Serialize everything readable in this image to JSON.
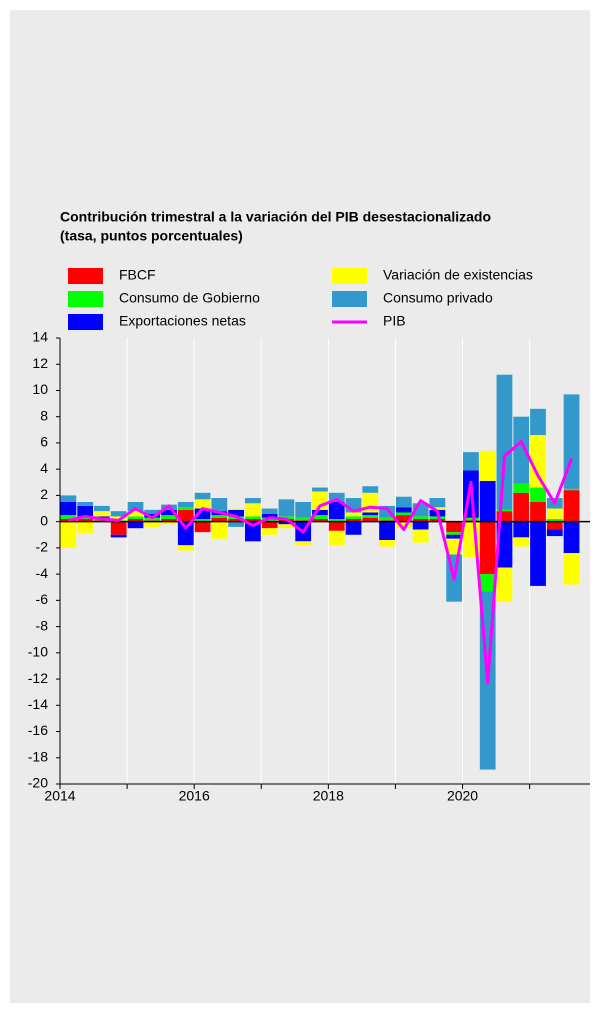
{
  "chart_data": {
    "type": "stacked_bar_line",
    "title": "Contribución trimestral a la variación del PIB desestacionalizado",
    "subtitle": "(tasa, puntos porcentuales)",
    "x": [
      2014.125,
      2014.375,
      2014.625,
      2014.875,
      2015.125,
      2015.375,
      2015.625,
      2015.875,
      2016.125,
      2016.375,
      2016.625,
      2016.875,
      2017.125,
      2017.375,
      2017.625,
      2017.875,
      2018.125,
      2018.375,
      2018.625,
      2018.875,
      2019.125,
      2019.375,
      2019.625,
      2019.875,
      2020.125,
      2020.375,
      2020.625,
      2020.875,
      2021.125,
      2021.375,
      2021.625
    ],
    "series": [
      {
        "name": "FBCF",
        "color": "#ff0000",
        "values": [
          0.2,
          0.2,
          0.1,
          -1.0,
          0.2,
          0.1,
          0.2,
          0.9,
          -0.8,
          0.3,
          0.2,
          0.2,
          -0.5,
          0.2,
          0.1,
          0.2,
          -0.7,
          0.2,
          0.3,
          0.1,
          0.5,
          0.2,
          0.2,
          -0.8,
          0.1,
          -4.0,
          0.8,
          2.2,
          1.5,
          -0.6,
          2.4
        ]
      },
      {
        "name": "Consumo de Gobierno",
        "color": "#00ff00",
        "values": [
          0.3,
          0.2,
          0.2,
          0.1,
          0.2,
          0.2,
          0.3,
          0.2,
          0.2,
          0.2,
          0.2,
          0.2,
          0.3,
          0.2,
          0.2,
          0.3,
          0.2,
          0.2,
          0.2,
          0.2,
          0.2,
          0.2,
          0.2,
          -0.2,
          0.2,
          -1.3,
          0.1,
          0.7,
          1.1,
          0.2,
          0.1
        ]
      },
      {
        "name": "Exportaciones netas",
        "color": "#0000ff",
        "values": [
          1.0,
          0.8,
          0.1,
          -0.2,
          -0.5,
          0.3,
          0.4,
          -1.8,
          0.8,
          0.3,
          0.5,
          -1.5,
          0.3,
          -0.2,
          -1.5,
          0.4,
          1.3,
          -1.0,
          0.2,
          -1.4,
          0.4,
          -0.6,
          0.5,
          -0.3,
          3.6,
          3.1,
          -3.5,
          -1.2,
          -4.9,
          -0.5,
          -2.4
        ]
      },
      {
        "name": "Variación de existencias",
        "color": "#ffff00",
        "values": [
          -2.0,
          -0.9,
          0.4,
          0.3,
          0.4,
          -0.4,
          -0.2,
          -0.4,
          0.7,
          -1.3,
          0.1,
          1.0,
          -0.5,
          -0.3,
          -0.3,
          1.4,
          -1.1,
          0.3,
          1.5,
          -0.5,
          -0.5,
          -1.0,
          0.2,
          -1.2,
          -2.7,
          2.3,
          -2.6,
          -0.7,
          4.0,
          0.8,
          -2.4
        ]
      },
      {
        "name": "Consumo privado",
        "color": "#3399cc",
        "values": [
          0.5,
          0.3,
          0.4,
          0.4,
          0.7,
          0.3,
          0.4,
          0.4,
          0.5,
          1.0,
          -0.4,
          0.4,
          0.4,
          1.3,
          1.2,
          0.3,
          0.7,
          1.1,
          0.5,
          0.9,
          0.8,
          1.0,
          0.7,
          -3.6,
          1.4,
          -13.6,
          10.3,
          5.1,
          2.0,
          0.8,
          7.2
        ]
      }
    ],
    "line": {
      "name": "PIB",
      "color": "#ff00ff",
      "values": [
        0.1,
        0.4,
        0.2,
        0.1,
        1.0,
        0.3,
        1.2,
        -0.5,
        1.0,
        0.7,
        0.4,
        -0.3,
        0.3,
        0.2,
        -0.8,
        1.2,
        1.7,
        0.8,
        1.1,
        1.0,
        -0.6,
        1.6,
        0.8,
        -4.4,
        3.0,
        -12.3,
        5.0,
        6.1,
        3.5,
        1.4,
        4.8
      ]
    },
    "xlim": [
      2014,
      2021.9
    ],
    "xticks": [
      2014,
      2016,
      2018,
      2020
    ],
    "xminor_ticks": [
      2015,
      2017,
      2019,
      2021
    ],
    "ylim": [
      -20,
      14
    ],
    "yticks": [
      -20,
      -18,
      -16,
      -14,
      -12,
      -10,
      -8,
      -6,
      -4,
      -2,
      0,
      2,
      4,
      6,
      8,
      10,
      12,
      14
    ],
    "grid": true
  }
}
